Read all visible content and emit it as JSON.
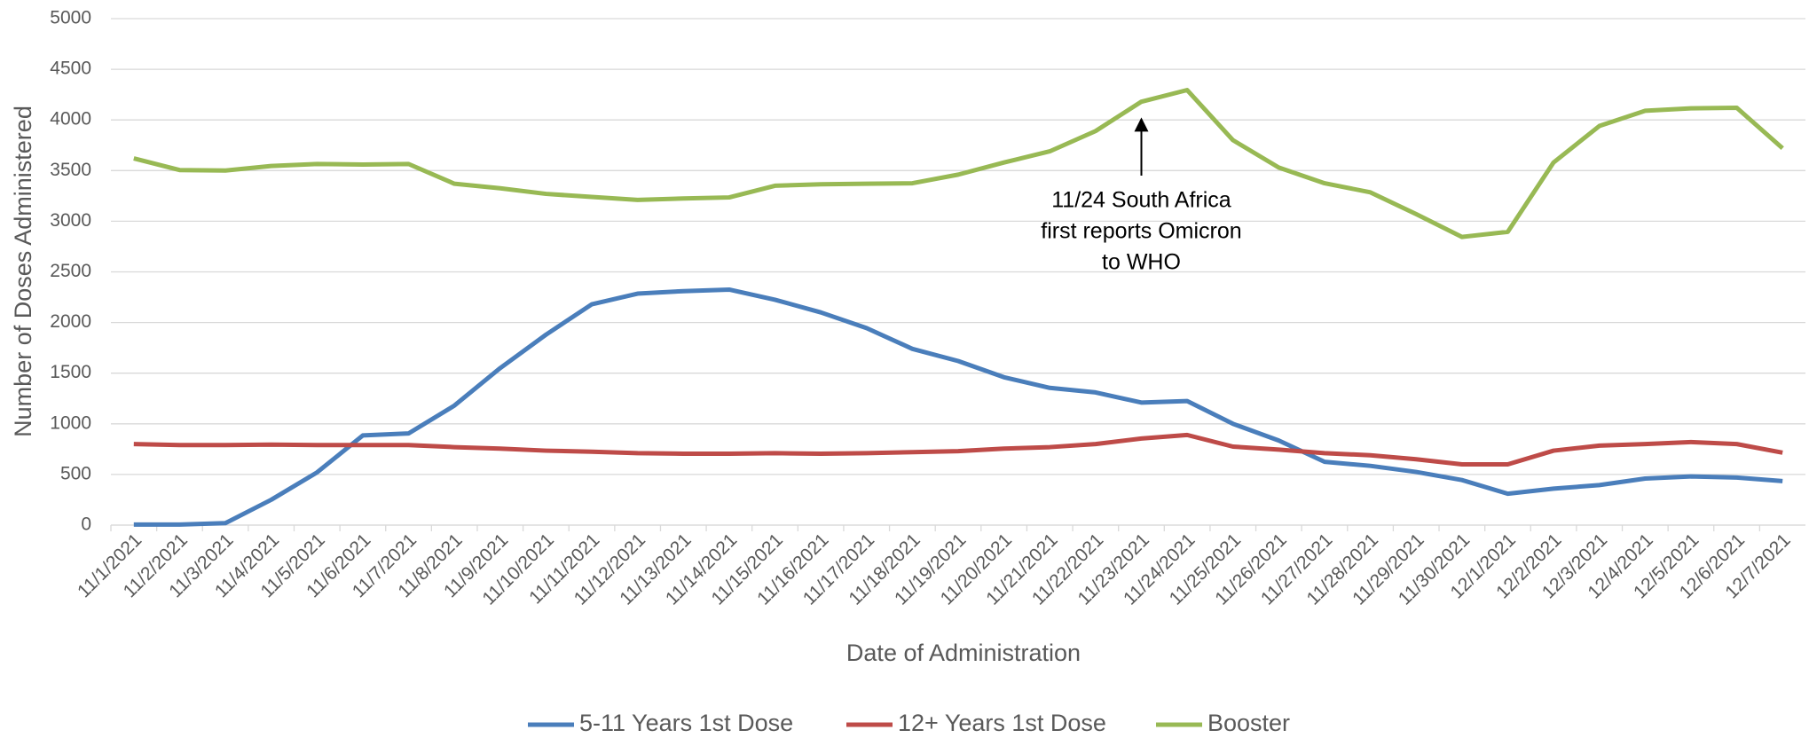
{
  "chart_data": {
    "type": "line",
    "x_label": "Date of Administration",
    "y_label": "Number of Doses Administered",
    "categories": [
      "11/1/2021",
      "11/2/2021",
      "11/3/2021",
      "11/4/2021",
      "11/5/2021",
      "11/6/2021",
      "11/7/2021",
      "11/8/2021",
      "11/9/2021",
      "11/10/2021",
      "11/11/2021",
      "11/12/2021",
      "11/13/2021",
      "11/14/2021",
      "11/15/2021",
      "11/16/2021",
      "11/17/2021",
      "11/18/2021",
      "11/19/2021",
      "11/20/2021",
      "11/21/2021",
      "11/22/2021",
      "11/23/2021",
      "11/24/2021",
      "11/25/2021",
      "11/26/2021",
      "11/27/2021",
      "11/28/2021",
      "11/29/2021",
      "11/30/2021",
      "12/1/2021",
      "12/2/2021",
      "12/3/2021",
      "12/4/2021",
      "12/5/2021",
      "12/6/2021",
      "12/7/2021"
    ],
    "series": [
      {
        "name": "5-11 Years 1st Dose",
        "color": "#4a7ebb",
        "values": [
          5,
          5,
          20,
          250,
          520,
          885,
          905,
          1180,
          1550,
          1880,
          2180,
          2285,
          2310,
          2325,
          2225,
          2100,
          1945,
          1740,
          1620,
          1460,
          1355,
          1310,
          1210,
          1225,
          1000,
          835,
          625,
          585,
          525,
          445,
          310,
          360,
          395,
          460,
          480,
          470,
          435
        ]
      },
      {
        "name": "12+ Years 1st Dose",
        "color": "#be4b48",
        "values": [
          800,
          790,
          790,
          795,
          790,
          790,
          790,
          770,
          755,
          735,
          725,
          710,
          705,
          705,
          710,
          705,
          710,
          720,
          730,
          755,
          770,
          800,
          855,
          890,
          775,
          745,
          710,
          690,
          650,
          600,
          600,
          735,
          785,
          800,
          820,
          800,
          715
        ]
      },
      {
        "name": "Booster",
        "color": "#98b954",
        "values": [
          3620,
          3505,
          3500,
          3545,
          3565,
          3560,
          3565,
          3370,
          3325,
          3270,
          3240,
          3210,
          3225,
          3235,
          3350,
          3365,
          3370,
          3375,
          3460,
          3580,
          3690,
          3890,
          4180,
          4295,
          3800,
          3530,
          3375,
          3285,
          3070,
          2845,
          2895,
          3580,
          3940,
          4090,
          4115,
          4120,
          3720
        ]
      }
    ],
    "annotation": [
      "11/24 South Africa",
      "first reports Omicron",
      "to WHO"
    ],
    "ylim": [
      0,
      5000
    ],
    "yticks": [
      0,
      500,
      1000,
      1500,
      2000,
      2500,
      3000,
      3500,
      4000,
      4500,
      5000
    ],
    "grid": true,
    "legend": "bottom"
  }
}
